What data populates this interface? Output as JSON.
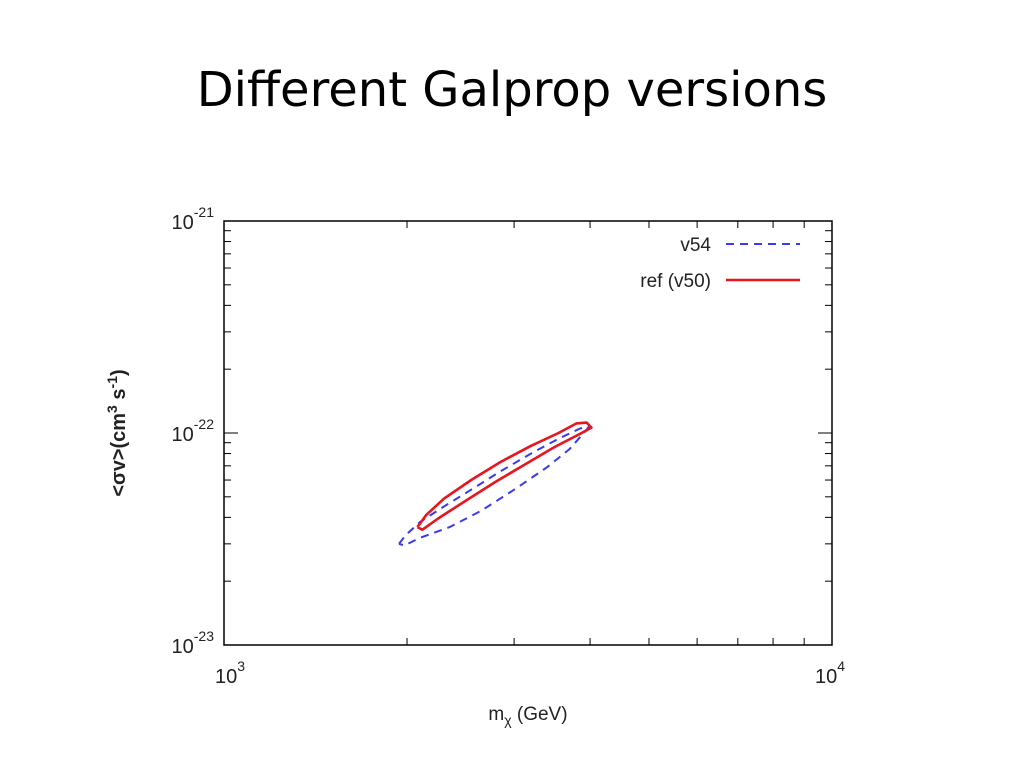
{
  "slide": {
    "title": "Different Galprop versions"
  },
  "colors": {
    "v54": "#3a3aee",
    "ref": "#e8141e",
    "axis": "#000000"
  },
  "chart_data": {
    "type": "line",
    "title": "",
    "xlabel": {
      "base": "m",
      "sub": "χ",
      "rest": " (GeV)"
    },
    "ylabel": {
      "a": "<σv>(cm",
      "sup1": "3",
      "b": " s",
      "sup2": "-1",
      "c": ")"
    },
    "xscale": "log",
    "yscale": "log",
    "xlim": [
      1000,
      10000
    ],
    "ylim": [
      1e-23,
      1e-21
    ],
    "x_ticks": [
      {
        "value": 1000,
        "base": "10",
        "exp": "3"
      },
      {
        "value": 10000,
        "base": "10",
        "exp": "4"
      }
    ],
    "y_ticks": [
      {
        "value": 1e-23,
        "base": "10",
        "exp": "-23"
      },
      {
        "value": 1e-22,
        "base": "10",
        "exp": "-22"
      },
      {
        "value": 1e-21,
        "base": "10",
        "exp": "-21"
      }
    ],
    "legend_position": "top-right",
    "grid": false,
    "series": [
      {
        "name": "v54",
        "style": "dashed",
        "color": "#3a3aee",
        "points": [
          [
            1940,
            3e-23
          ],
          [
            1990,
            3.3e-23
          ],
          [
            2100,
            3.8e-23
          ],
          [
            2300,
            4.5e-23
          ],
          [
            2550,
            5.4e-23
          ],
          [
            2850,
            6.6e-23
          ],
          [
            3200,
            8e-23
          ],
          [
            3550,
            9.4e-23
          ],
          [
            3850,
            1.05e-22
          ],
          [
            3980,
            1.07e-22
          ],
          [
            3930,
            1.02e-22
          ],
          [
            3700,
            8.4e-23
          ],
          [
            3400,
            6.9e-23
          ],
          [
            3000,
            5.4e-23
          ],
          [
            2650,
            4.3e-23
          ],
          [
            2350,
            3.6e-23
          ],
          [
            2100,
            3.2e-23
          ],
          [
            1980,
            2.95e-23
          ],
          [
            1940,
            3e-23
          ]
        ]
      },
      {
        "name": "ref (v50)",
        "style": "solid",
        "color": "#e8141e",
        "points": [
          [
            2080,
            3.6e-23
          ],
          [
            2150,
            4.1e-23
          ],
          [
            2300,
            4.9e-23
          ],
          [
            2550,
            6e-23
          ],
          [
            2850,
            7.3e-23
          ],
          [
            3200,
            8.7e-23
          ],
          [
            3550,
            1e-22
          ],
          [
            3800,
            1.11e-22
          ],
          [
            3950,
            1.12e-22
          ],
          [
            4020,
            1.06e-22
          ],
          [
            3850,
            9.9e-23
          ],
          [
            3500,
            8.6e-23
          ],
          [
            3150,
            7.2e-23
          ],
          [
            2800,
            5.9e-23
          ],
          [
            2500,
            4.8e-23
          ],
          [
            2250,
            3.95e-23
          ],
          [
            2120,
            3.5e-23
          ],
          [
            2080,
            3.6e-23
          ]
        ]
      }
    ]
  }
}
